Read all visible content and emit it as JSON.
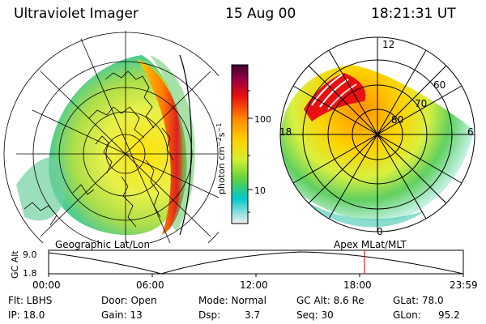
{
  "header": {
    "instrument": "Ultraviolet Imager",
    "date": "15 Aug 00",
    "time": "18:21:31 UT"
  },
  "left_panel": {
    "caption": "Geographic Lat/Lon"
  },
  "right_panel": {
    "caption": "Apex MLat/MLT",
    "mlt_labels": [
      "12",
      "18",
      "6",
      "0"
    ],
    "lat_labels": [
      "60",
      "70",
      "80"
    ]
  },
  "colorbar": {
    "unit_label": "photon cm",
    "unit_exp1": "−2",
    "unit_s": "s",
    "unit_exp2": "−1",
    "ticks": [
      "100",
      "10"
    ],
    "colors": {
      "max": "#4a0033",
      "high": "#e81010",
      "mid": "#ffd200",
      "low": "#00c8c8",
      "min": "#f0f0f0"
    }
  },
  "timeline": {
    "axis_label": "GC Alt",
    "y_ticks": [
      "9.0",
      "1.8"
    ],
    "x_ticks": [
      "00:00",
      "06:00",
      "12:00",
      "18:00",
      "23:59"
    ],
    "marker_color": "#e02020"
  },
  "info": {
    "row1": {
      "filter": "Flt: LBHS",
      "door": "Door: Open",
      "mode": "Mode: Normal",
      "gc_alt": "GC Alt: 8.6 Re",
      "glat": "GLat: 78.0"
    },
    "row2": {
      "ip": "IP: 18.0",
      "gain": "Gain: 13",
      "dsp_label": "Dsp:",
      "dsp_value": "3.7",
      "seq": "Seq: 30",
      "glon_label": "GLon:",
      "glon_value": "95.2"
    }
  }
}
